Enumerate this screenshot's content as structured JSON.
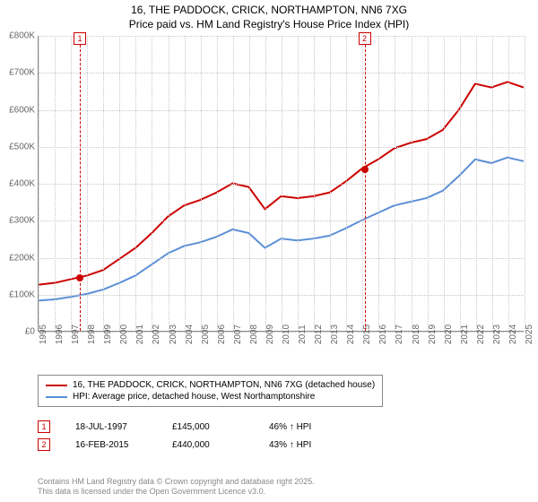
{
  "title": {
    "line1": "16, THE PADDOCK, CRICK, NORTHAMPTON, NN6 7XG",
    "line2": "Price paid vs. HM Land Registry's House Price Index (HPI)"
  },
  "chart": {
    "type": "line",
    "background_color": "#ffffff",
    "grid_color": "#c8c8c8",
    "axis_color": "#888888",
    "x_range": [
      1995,
      2025
    ],
    "y_range": [
      0,
      800000
    ],
    "y_ticks": [
      0,
      100000,
      200000,
      300000,
      400000,
      500000,
      600000,
      700000,
      800000
    ],
    "y_tick_labels": [
      "£0",
      "£100K",
      "£200K",
      "£300K",
      "£400K",
      "£500K",
      "£600K",
      "£700K",
      "£800K"
    ],
    "x_ticks": [
      1995,
      1996,
      1997,
      1998,
      1999,
      2000,
      2001,
      2002,
      2003,
      2004,
      2005,
      2006,
      2007,
      2008,
      2009,
      2010,
      2011,
      2012,
      2013,
      2014,
      2015,
      2016,
      2017,
      2018,
      2019,
      2020,
      2021,
      2022,
      2023,
      2024,
      2025
    ],
    "label_fontsize": 10,
    "series": [
      {
        "name": "price_paid",
        "color": "#cc0000",
        "line_width": 2,
        "x": [
          1995,
          1996,
          1997,
          1998,
          1999,
          2000,
          2001,
          2002,
          2003,
          2004,
          2005,
          2006,
          2007,
          2008,
          2009,
          2010,
          2011,
          2012,
          2013,
          2014,
          2015,
          2016,
          2017,
          2018,
          2019,
          2020,
          2021,
          2022,
          2023,
          2024,
          2025
        ],
        "y": [
          125000,
          130000,
          140000,
          150000,
          165000,
          195000,
          225000,
          265000,
          310000,
          340000,
          355000,
          375000,
          400000,
          390000,
          330000,
          365000,
          360000,
          365000,
          375000,
          405000,
          440000,
          465000,
          495000,
          510000,
          520000,
          545000,
          600000,
          670000,
          660000,
          675000,
          660000
        ]
      },
      {
        "name": "hpi",
        "color": "#5b8fd6",
        "line_width": 2,
        "x": [
          1995,
          1996,
          1997,
          1998,
          1999,
          2000,
          2001,
          2002,
          2003,
          2004,
          2005,
          2006,
          2007,
          2008,
          2009,
          2010,
          2011,
          2012,
          2013,
          2014,
          2015,
          2016,
          2017,
          2018,
          2019,
          2020,
          2021,
          2022,
          2023,
          2024,
          2025
        ],
        "y": [
          82000,
          85000,
          92000,
          100000,
          112000,
          130000,
          150000,
          180000,
          210000,
          230000,
          240000,
          255000,
          275000,
          265000,
          225000,
          250000,
          245000,
          250000,
          258000,
          278000,
          300000,
          320000,
          340000,
          350000,
          360000,
          380000,
          420000,
          465000,
          455000,
          470000,
          460000
        ]
      }
    ],
    "markers": [
      {
        "id": "1",
        "x": 1997.55,
        "y": 145000
      },
      {
        "id": "2",
        "x": 2015.12,
        "y": 440000
      }
    ]
  },
  "legend": {
    "items": [
      {
        "color": "#cc0000",
        "label": "16, THE PADDOCK, CRICK, NORTHAMPTON, NN6 7XG (detached house)"
      },
      {
        "color": "#5b8fd6",
        "label": "HPI: Average price, detached house, West Northamptonshire"
      }
    ]
  },
  "marker_table": {
    "rows": [
      {
        "id": "1",
        "date": "18-JUL-1997",
        "price": "£145,000",
        "delta": "46% ↑ HPI"
      },
      {
        "id": "2",
        "date": "16-FEB-2015",
        "price": "£440,000",
        "delta": "43% ↑ HPI"
      }
    ]
  },
  "footer": {
    "line1": "Contains HM Land Registry data © Crown copyright and database right 2025.",
    "line2": "This data is licensed under the Open Government Licence v3.0."
  }
}
